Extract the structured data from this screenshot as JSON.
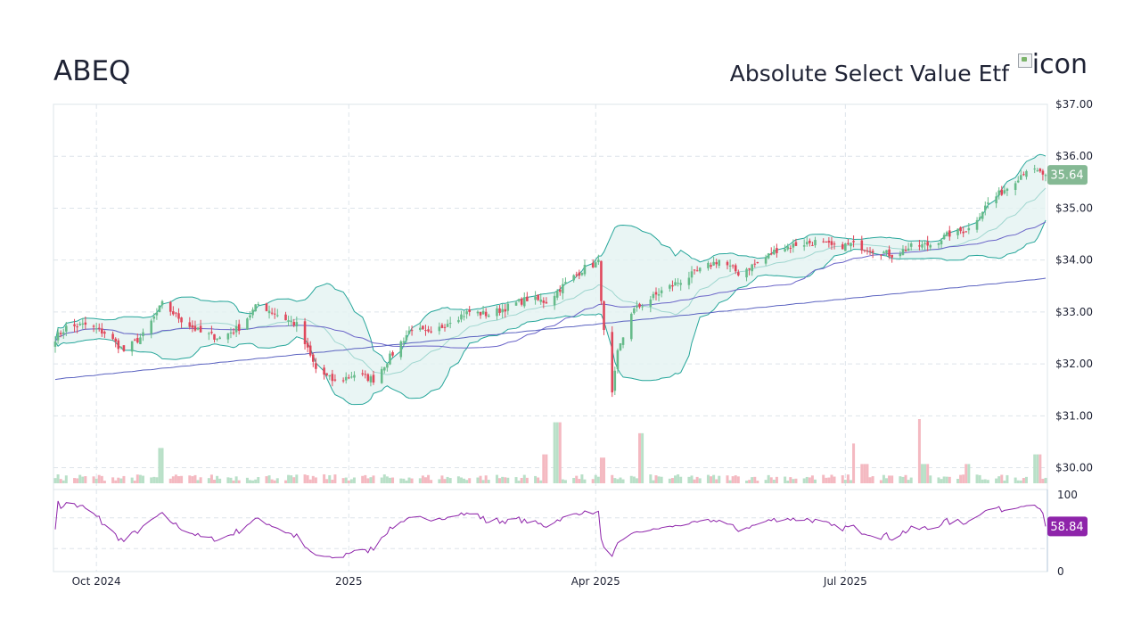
{
  "header": {
    "ticker": "ABEQ",
    "fund_name": "Absolute Select Value Etf",
    "logo_alt": "icon",
    "logo_icon": "broken-image-icon"
  },
  "colors": {
    "up": "#66bb8a",
    "down": "#e0475b",
    "band_fill": "#e3f3f1",
    "band_line": "#26a69a",
    "ma_short": "#6a64c8",
    "ma_long": "#5a62c0",
    "rsi": "#8e24aa",
    "grid": "#dde4ea",
    "price_badge": "#85b994",
    "rsi_badge": "#8e24aa"
  },
  "chart_data": [
    {
      "type": "candlestick",
      "x_ticks": [
        {
          "label": "Oct 2024",
          "date": "2024-10-01"
        },
        {
          "label": "2025",
          "date": "2025-01-01"
        },
        {
          "label": "Apr 2025",
          "date": "2025-04-01"
        },
        {
          "label": "Jul 2025",
          "date": "2025-07-01"
        }
      ],
      "x_range": [
        "2024-09-16",
        "2025-09-12"
      ],
      "y_range": [
        29.7,
        37.0
      ],
      "y_ticks": [
        "$30.00",
        "$31.00",
        "$32.00",
        "$33.00",
        "$34.00",
        "$35.00",
        "$36.00",
        "$37.00"
      ],
      "y_tick_values": [
        30,
        31,
        32,
        33,
        34,
        35,
        36,
        37
      ],
      "last_price_label": "35.64",
      "last_price": 35.64,
      "close_anchors": [
        [
          "2024-09-16",
          32.5
        ],
        [
          "2024-09-20",
          32.7
        ],
        [
          "2024-09-27",
          32.75
        ],
        [
          "2024-10-04",
          32.6
        ],
        [
          "2024-10-11",
          32.25
        ],
        [
          "2024-10-18",
          32.55
        ],
        [
          "2024-10-25",
          33.15
        ],
        [
          "2024-11-01",
          32.85
        ],
        [
          "2024-11-08",
          32.6
        ],
        [
          "2024-11-15",
          32.5
        ],
        [
          "2024-11-22",
          32.7
        ],
        [
          "2024-11-29",
          33.15
        ],
        [
          "2024-12-06",
          32.95
        ],
        [
          "2024-12-13",
          32.75
        ],
        [
          "2024-12-20",
          31.9
        ],
        [
          "2024-12-27",
          31.65
        ],
        [
          "2025-01-03",
          31.8
        ],
        [
          "2025-01-10",
          31.7
        ],
        [
          "2025-01-17",
          32.2
        ],
        [
          "2025-01-24",
          32.7
        ],
        [
          "2025-01-31",
          32.55
        ],
        [
          "2025-02-07",
          32.85
        ],
        [
          "2025-02-14",
          33.0
        ],
        [
          "2025-02-21",
          32.95
        ],
        [
          "2025-02-28",
          33.1
        ],
        [
          "2025-03-07",
          33.25
        ],
        [
          "2025-03-14",
          33.2
        ],
        [
          "2025-03-21",
          33.55
        ],
        [
          "2025-03-28",
          33.85
        ],
        [
          "2025-04-02",
          33.95
        ],
        [
          "2025-04-04",
          32.6
        ],
        [
          "2025-04-07",
          31.4
        ],
        [
          "2025-04-09",
          32.2
        ],
        [
          "2025-04-14",
          33.0
        ],
        [
          "2025-04-25",
          33.4
        ],
        [
          "2025-05-02",
          33.6
        ],
        [
          "2025-05-09",
          33.8
        ],
        [
          "2025-05-16",
          34.0
        ],
        [
          "2025-05-23",
          33.75
        ],
        [
          "2025-05-30",
          33.95
        ],
        [
          "2025-06-06",
          34.2
        ],
        [
          "2025-06-13",
          34.3
        ],
        [
          "2025-06-20",
          34.35
        ],
        [
          "2025-06-27",
          34.25
        ],
        [
          "2025-07-03",
          34.3
        ],
        [
          "2025-07-11",
          34.2
        ],
        [
          "2025-07-18",
          34.1
        ],
        [
          "2025-07-25",
          34.25
        ],
        [
          "2025-08-01",
          34.3
        ],
        [
          "2025-08-08",
          34.5
        ],
        [
          "2025-08-15",
          34.6
        ],
        [
          "2025-08-22",
          35.1
        ],
        [
          "2025-08-29",
          35.4
        ],
        [
          "2025-09-05",
          35.75
        ],
        [
          "2025-09-12",
          35.64
        ]
      ]
    },
    {
      "type": "bar",
      "name": "volume",
      "spikes": [
        [
          "2024-10-25",
          0.55
        ],
        [
          "2025-03-14",
          0.45
        ],
        [
          "2025-03-18",
          0.95
        ],
        [
          "2025-04-04",
          0.4
        ],
        [
          "2025-04-18",
          0.78
        ],
        [
          "2025-07-05",
          0.62
        ],
        [
          "2025-07-08",
          0.3
        ],
        [
          "2025-07-28",
          1.0
        ],
        [
          "2025-07-30",
          0.3
        ],
        [
          "2025-08-15",
          0.3
        ],
        [
          "2025-09-09",
          0.45
        ]
      ]
    },
    {
      "type": "line",
      "name": "RSI",
      "y_range": [
        0,
        100
      ],
      "y_ticks": [
        "0",
        "100"
      ],
      "y_tick_values": [
        0,
        100
      ],
      "last_value_label": "58.84",
      "last_value": 58.84
    }
  ]
}
